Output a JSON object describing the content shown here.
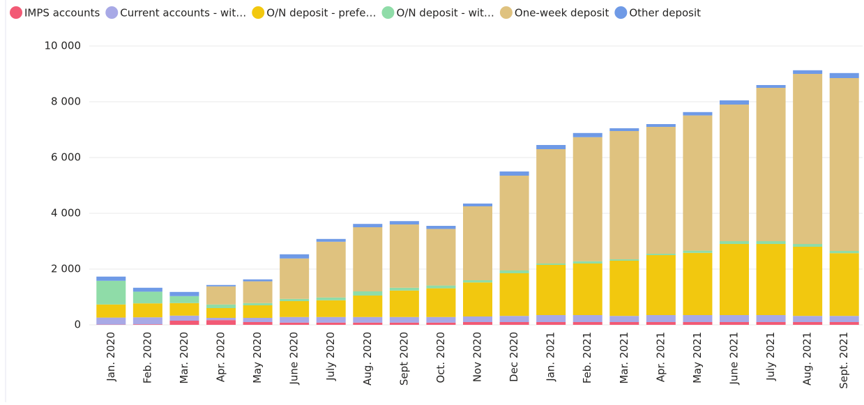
{
  "chart_data": {
    "type": "stacked-bar",
    "categories": [
      "Jan. 2020",
      "Feb. 2020",
      "Mar. 2020",
      "Apr. 2020",
      "May 2020",
      "June 2020",
      "July 2020",
      "Aug. 2020",
      "Sept 2020",
      "Oct. 2020",
      "Nov 2020",
      "Dec 2020",
      "Jan. 2021",
      "Feb. 2021",
      "Mar. 2021",
      "Apr. 2021",
      "May 2021",
      "June 2021",
      "July 2021",
      "Aug. 2021",
      "Sept. 2021"
    ],
    "series": [
      {
        "name": "IMPS accounts",
        "color": "#f25a75",
        "values": [
          10,
          20,
          150,
          170,
          100,
          80,
          80,
          80,
          80,
          80,
          100,
          100,
          100,
          100,
          100,
          100,
          100,
          100,
          100,
          100,
          100
        ]
      },
      {
        "name": "Current accounts - wit…",
        "color": "#a8a9e6",
        "values": [
          250,
          250,
          180,
          80,
          150,
          200,
          200,
          200,
          200,
          200,
          200,
          220,
          250,
          250,
          220,
          250,
          250,
          250,
          250,
          220,
          220
        ]
      },
      {
        "name": "O/N deposit - prefe…",
        "color": "#f2c80f",
        "values": [
          470,
          500,
          450,
          350,
          450,
          570,
          600,
          770,
          950,
          1030,
          1220,
          1530,
          1800,
          1850,
          1980,
          2150,
          2230,
          2550,
          2550,
          2480,
          2250
        ]
      },
      {
        "name": "O/N deposit - wit…",
        "color": "#8fdca8",
        "values": [
          850,
          420,
          250,
          130,
          80,
          80,
          100,
          150,
          100,
          100,
          80,
          100,
          50,
          80,
          50,
          50,
          80,
          100,
          100,
          100,
          80
        ]
      },
      {
        "name": "One-week deposit",
        "color": "#dfc27f",
        "values": [
          0,
          0,
          0,
          650,
          780,
          1450,
          2000,
          2300,
          2270,
          2030,
          2650,
          3400,
          4100,
          4450,
          4600,
          4550,
          4850,
          4900,
          5500,
          6100,
          6200
        ]
      },
      {
        "name": "Other deposit",
        "color": "#6f9ae6",
        "values": [
          150,
          140,
          150,
          50,
          70,
          150,
          100,
          120,
          120,
          110,
          100,
          150,
          150,
          150,
          100,
          100,
          120,
          150,
          100,
          130,
          180
        ]
      }
    ],
    "ylim": [
      0,
      10000
    ],
    "yticks": [
      0,
      {
        "value": 2000,
        "label": "2 000"
      },
      {
        "value": 4000,
        "label": "4 000"
      },
      {
        "value": 6000,
        "label": "6 000"
      },
      {
        "value": 8000,
        "label": "8 000"
      },
      {
        "value": 10000,
        "label": "10 000"
      }
    ],
    "grid": true
  }
}
